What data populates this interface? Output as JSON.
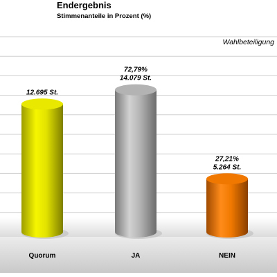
{
  "chart": {
    "title": "Endergebnis",
    "subtitle": "Stimmenanteile in Prozent (%)",
    "annotation": "Wahlbeteiligung"
  },
  "chart_data": {
    "type": "bar",
    "title": "Endergebnis",
    "subtitle": "Stimmenanteile in Prozent (%)",
    "categories": [
      "Quorum",
      "JA",
      "NEIN"
    ],
    "values": [
      65.5,
      72.79,
      27.21
    ],
    "data_labels": [
      [
        "12.695 St."
      ],
      [
        "72,79%",
        "14.079 St."
      ],
      [
        "27,21%",
        "5.264 St."
      ]
    ],
    "colors": [
      "#e8e800",
      "#b3b3b3",
      "#f07800"
    ],
    "ylim": [
      0,
      100
    ],
    "grid": true,
    "annotation": "Wahlbeteiligung"
  }
}
